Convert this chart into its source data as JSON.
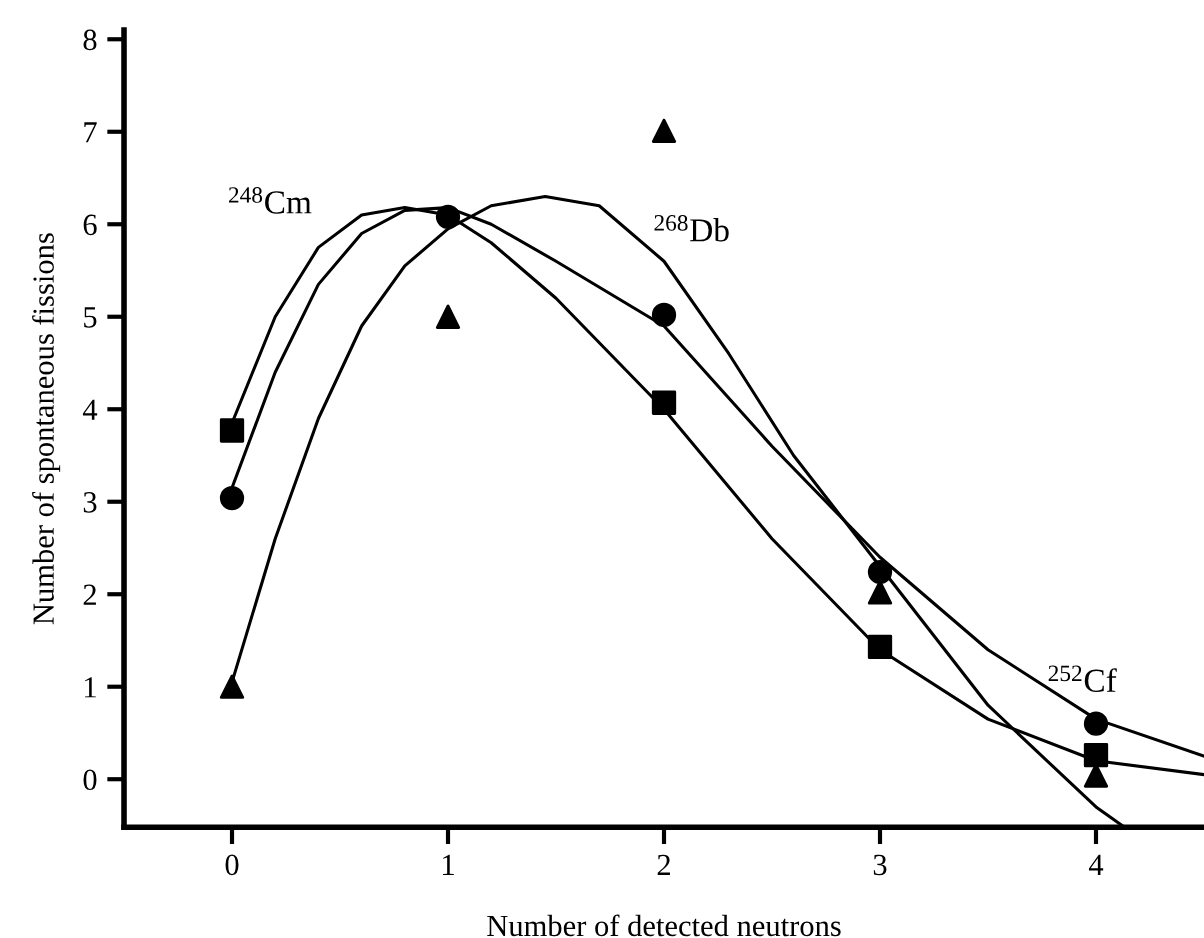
{
  "chart_data": {
    "type": "scatter",
    "xlabel": "Number of detected neutrons",
    "ylabel": "Number of spontaneous fissions",
    "x": [
      0,
      1,
      2,
      3,
      4
    ],
    "series": [
      {
        "color": "#000000",
        "marker": "square",
        "values": [
          3.77,
          null,
          4.07,
          1.43,
          0.26
        ]
      },
      {
        "color": "#000000",
        "marker": "circle",
        "values": [
          3.04,
          6.08,
          5.02,
          2.24,
          0.6
        ]
      },
      {
        "color": "#000000",
        "marker": "triangle",
        "values": [
          1.0,
          5.0,
          7.01,
          2.02,
          0.04
        ]
      },
      {
        "type": "line",
        "color": "#000000",
        "marker": "none",
        "x": [
          0,
          0.2,
          0.4,
          0.6,
          0.8,
          1.0,
          1.2,
          1.5,
          2.0,
          2.5,
          3.0,
          3.5,
          4.0,
          4.5
        ],
        "values": [
          3.85,
          5.0,
          5.75,
          6.1,
          6.18,
          6.1,
          5.8,
          5.2,
          4.0,
          2.6,
          1.4,
          0.65,
          0.2,
          0.05
        ]
      },
      {
        "type": "line",
        "color": "#000000",
        "marker": "none",
        "x": [
          0,
          0.2,
          0.4,
          0.6,
          0.8,
          1.0,
          1.2,
          1.5,
          2.0,
          2.5,
          3.0,
          3.5,
          4.0,
          4.5
        ],
        "values": [
          3.15,
          4.4,
          5.35,
          5.9,
          6.15,
          6.18,
          6.0,
          5.6,
          4.9,
          3.6,
          2.4,
          1.4,
          0.65,
          0.25
        ]
      },
      {
        "type": "line",
        "color": "#000000",
        "marker": "none",
        "x": [
          0,
          0.2,
          0.4,
          0.6,
          0.8,
          1.0,
          1.2,
          1.45,
          1.7,
          2.0,
          2.3,
          2.6,
          3.0,
          3.5,
          4.0,
          4.12
        ],
        "values": [
          1.05,
          2.6,
          3.9,
          4.9,
          5.55,
          5.95,
          6.2,
          6.3,
          6.2,
          5.6,
          4.6,
          3.5,
          2.3,
          0.8,
          -0.3,
          -0.5
        ]
      }
    ],
    "annotations": [
      "$^{248}$Cm",
      "$^{268}$Db",
      "$^{252}$Cf"
    ],
    "xlim": [
      -0.5,
      4.5
    ],
    "ylim": [
      -0.52,
      8.1
    ],
    "xticks": [
      0,
      1,
      2,
      3,
      4
    ],
    "yticks": [
      0,
      1,
      2,
      3,
      4,
      5,
      6,
      7,
      8
    ],
    "grid": false,
    "legend": false
  }
}
